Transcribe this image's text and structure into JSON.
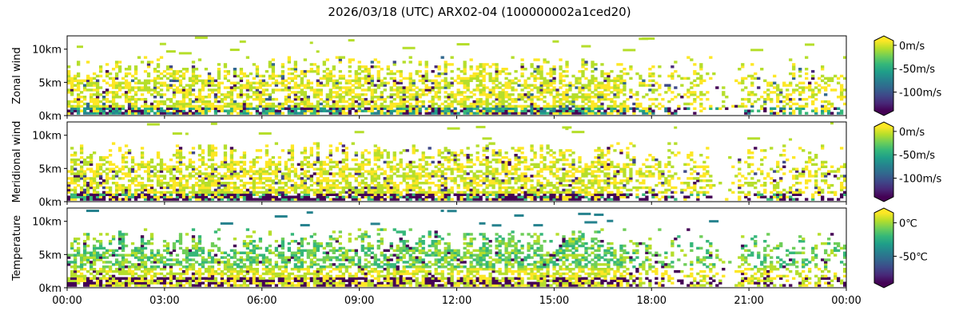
{
  "title": "2026/03/18 (UTC) ARX02-04 (100000002a1ced20)",
  "colors": {
    "viridis": [
      "#440154",
      "#482878",
      "#3e4989",
      "#31688e",
      "#26828e",
      "#1f9e89",
      "#35b779",
      "#6ece58",
      "#b5de2b",
      "#fde725"
    ]
  },
  "chart_data": [
    {
      "type": "heatmap",
      "title": "2026/03/18 (UTC) ARX02-04 (100000002a1ced20)",
      "xlabel": "",
      "ylabel": "Zonal wind",
      "x_ticks": [
        "00:00",
        "03:00",
        "06:00",
        "09:00",
        "12:00",
        "15:00",
        "18:00",
        "21:00",
        "00:00"
      ],
      "xlim_hours": [
        0,
        24
      ],
      "y_ticks": [
        "0km",
        "5km",
        "10km"
      ],
      "ylim_km": [
        0,
        12
      ],
      "colorbar": {
        "ticks": [
          "0m/s",
          "-50m/s",
          "-100m/s"
        ],
        "tick_values": [
          0,
          -50,
          -100
        ],
        "range": [
          -140,
          10
        ],
        "unit": "m/s"
      }
    },
    {
      "type": "heatmap",
      "xlabel": "",
      "ylabel": "Meridional wind",
      "x_ticks": [
        "00:00",
        "03:00",
        "06:00",
        "09:00",
        "12:00",
        "15:00",
        "18:00",
        "21:00",
        "00:00"
      ],
      "xlim_hours": [
        0,
        24
      ],
      "y_ticks": [
        "0km",
        "5km",
        "10km"
      ],
      "ylim_km": [
        0,
        12
      ],
      "colorbar": {
        "ticks": [
          "0m/s",
          "-50m/s",
          "-100m/s"
        ],
        "tick_values": [
          0,
          -50,
          -100
        ],
        "range": [
          -140,
          10
        ],
        "unit": "m/s"
      }
    },
    {
      "type": "heatmap",
      "xlabel": "",
      "ylabel": "Temperature",
      "x_ticks": [
        "00:00",
        "03:00",
        "06:00",
        "09:00",
        "12:00",
        "15:00",
        "18:00",
        "21:00",
        "00:00"
      ],
      "xlim_hours": [
        0,
        24
      ],
      "y_ticks": [
        "0km",
        "5km",
        "10km"
      ],
      "ylim_km": [
        0,
        12
      ],
      "colorbar": {
        "ticks": [
          "0℃",
          "-50℃"
        ],
        "tick_values": [
          0,
          -50
        ],
        "range": [
          -90,
          15
        ],
        "unit": "℃"
      }
    }
  ]
}
